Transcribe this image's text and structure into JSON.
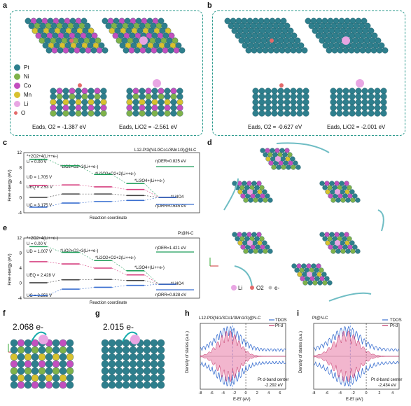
{
  "panels": {
    "a": "a",
    "b": "b",
    "c": "c",
    "d": "d",
    "e": "e",
    "f": "f",
    "g": "g",
    "h": "h",
    "i": "i"
  },
  "legend": {
    "items": [
      {
        "label": "Pt",
        "color": "#2e7f8d"
      },
      {
        "label": "Ni",
        "color": "#7fb24a"
      },
      {
        "label": "Co",
        "color": "#c34fbf"
      },
      {
        "label": "Mn",
        "color": "#d8c12f"
      },
      {
        "label": "Li",
        "color": "#e8a6e3"
      },
      {
        "label": "O",
        "color": "#e46a6a"
      }
    ]
  },
  "panel_a": {
    "eads_o2": "Eads, O2 = -1.387 eV",
    "eads_lio2": "Eads, LiO2 = -2.561 eV"
  },
  "panel_b": {
    "eads_o2": "Eads, O2 = -0.627 eV",
    "eads_lio2": "Eads, LiO2 = -2.001 eV"
  },
  "panel_c": {
    "title": "L12-Pt3(Ni1/3Co1/3Mn1/3)@N-C",
    "ylabel": "Free energy (eV)",
    "xlabel": "Reaction coordinate",
    "yticks": [
      "12",
      "8",
      "4",
      "0",
      "-4"
    ],
    "u0": "U = 0.00 V",
    "ud": "UD = 1.705 V",
    "ueq": "UEQ = 2.53 V",
    "uc": "UC = 3.175 V",
    "step1": "*+2O2+4(Li++e-)",
    "step2": "*LiO2+O2+3(Li++e-)",
    "step3": "*Li2O2+O2+2(Li++e-)",
    "step4": "*Li3O4+(Li++e-)",
    "step5": "*Li4O4",
    "oer": "ηOER=0.825 eV",
    "orr": "ηORR=0.645 eV"
  },
  "panel_e": {
    "title": "Pt@N-C",
    "ylabel": "Free energy (eV)",
    "xlabel": "Reaction coordinate",
    "yticks": [
      "12",
      "8",
      "4",
      "0",
      "-4"
    ],
    "u0": "U = 0.00 V",
    "ud": "UD = 1.007 V",
    "ueq": "UEQ = 2.428 V",
    "uc": "UC = 3.256 V",
    "step1": "*+2O2+4(Li++e-)",
    "step2": "*LiO2+O2+3(Li++e-)",
    "step3": "*Li2O2+O2+2(Li++e-)",
    "step4": "*Li3O4+(Li++e-)",
    "step5": "*Li4O4",
    "oer": "ηOER=1.421 eV",
    "orr": "ηORR=0.828 eV"
  },
  "panel_d": {
    "legend": [
      "Li",
      "O2",
      "e-"
    ]
  },
  "panel_f": {
    "charge": "2.068 e-"
  },
  "panel_g": {
    "charge": "2.015 e-"
  },
  "panel_h": {
    "title": "L12-Pt3(Ni1/3Co1/3Mn1/3)@N-C",
    "ylabel": "Density of states (a.u.)",
    "xlabel": "E-Ef (eV)",
    "xticks": [
      "-8",
      "-6",
      "-4",
      "-2",
      "0",
      "2",
      "4",
      "6"
    ],
    "legend": [
      "TDOS",
      "Pt-d"
    ],
    "center_label": "Pt d-band center",
    "center_value": "-2.292 eV"
  },
  "panel_i": {
    "title": "Pt@N-C",
    "ylabel": "Density of states (a.u.)",
    "xlabel": "E-Ef (eV)",
    "xticks": [
      "-8",
      "-6",
      "-4",
      "-2",
      "0",
      "2",
      "4"
    ],
    "legend": [
      "TDOS",
      "Pt-d"
    ],
    "center_label": "Pt d-band center",
    "center_value": "-2.434 eV"
  },
  "chart_data": [
    {
      "type": "line",
      "title": "L12-Pt3(Ni1/3Co1/3Mn1/3)@N-C",
      "xlabel": "Reaction coordinate",
      "ylabel": "Free energy (eV)",
      "ylim": [
        -4,
        12
      ],
      "categories": [
        "*+2O2+4(Li++e-)",
        "*LiO2+O2+3(Li++e-)",
        "*Li2O2+O2+2(Li++e-)",
        "*Li3O4+(Li++e-)",
        "*Li4O4"
      ],
      "series": [
        {
          "name": "U = 0.00 V",
          "values": [
            10.2,
            8.5,
            6.2,
            3.8,
            0.1
          ]
        },
        {
          "name": "UD = 1.705 V",
          "values": [
            3.3,
            3.4,
            2.9,
            2.2,
            0.1
          ]
        },
        {
          "name": "UEQ = 2.53 V",
          "values": [
            0.1,
            1.0,
            1.0,
            0.6,
            0.1
          ]
        },
        {
          "name": "UC = 3.175 V",
          "values": [
            -2.5,
            -1.4,
            -1.0,
            -0.7,
            0.1
          ]
        }
      ]
    },
    {
      "type": "line",
      "title": "Pt@N-C",
      "xlabel": "Reaction coordinate",
      "ylabel": "Free energy (eV)",
      "ylim": [
        -4,
        12
      ],
      "categories": [
        "*+2O2+4(Li++e-)",
        "*LiO2+O2+3(Li++e-)",
        "*Li2O2+O2+2(Li++e-)",
        "*Li3O4+(Li++e-)",
        "*Li4O4"
      ],
      "series": [
        {
          "name": "U = 0.00 V",
          "values": [
            9.7,
            8.2,
            6.0,
            3.3,
            -0.3
          ]
        },
        {
          "name": "UD = 1.007 V",
          "values": [
            5.7,
            5.1,
            4.0,
            2.2,
            -0.3
          ]
        },
        {
          "name": "UEQ = 2.428 V",
          "values": [
            0.1,
            0.9,
            1.0,
            0.7,
            -0.3
          ]
        },
        {
          "name": "UC = 3.256 V",
          "values": [
            -3.3,
            -1.6,
            -1.1,
            -0.6,
            -0.3
          ]
        }
      ]
    }
  ]
}
